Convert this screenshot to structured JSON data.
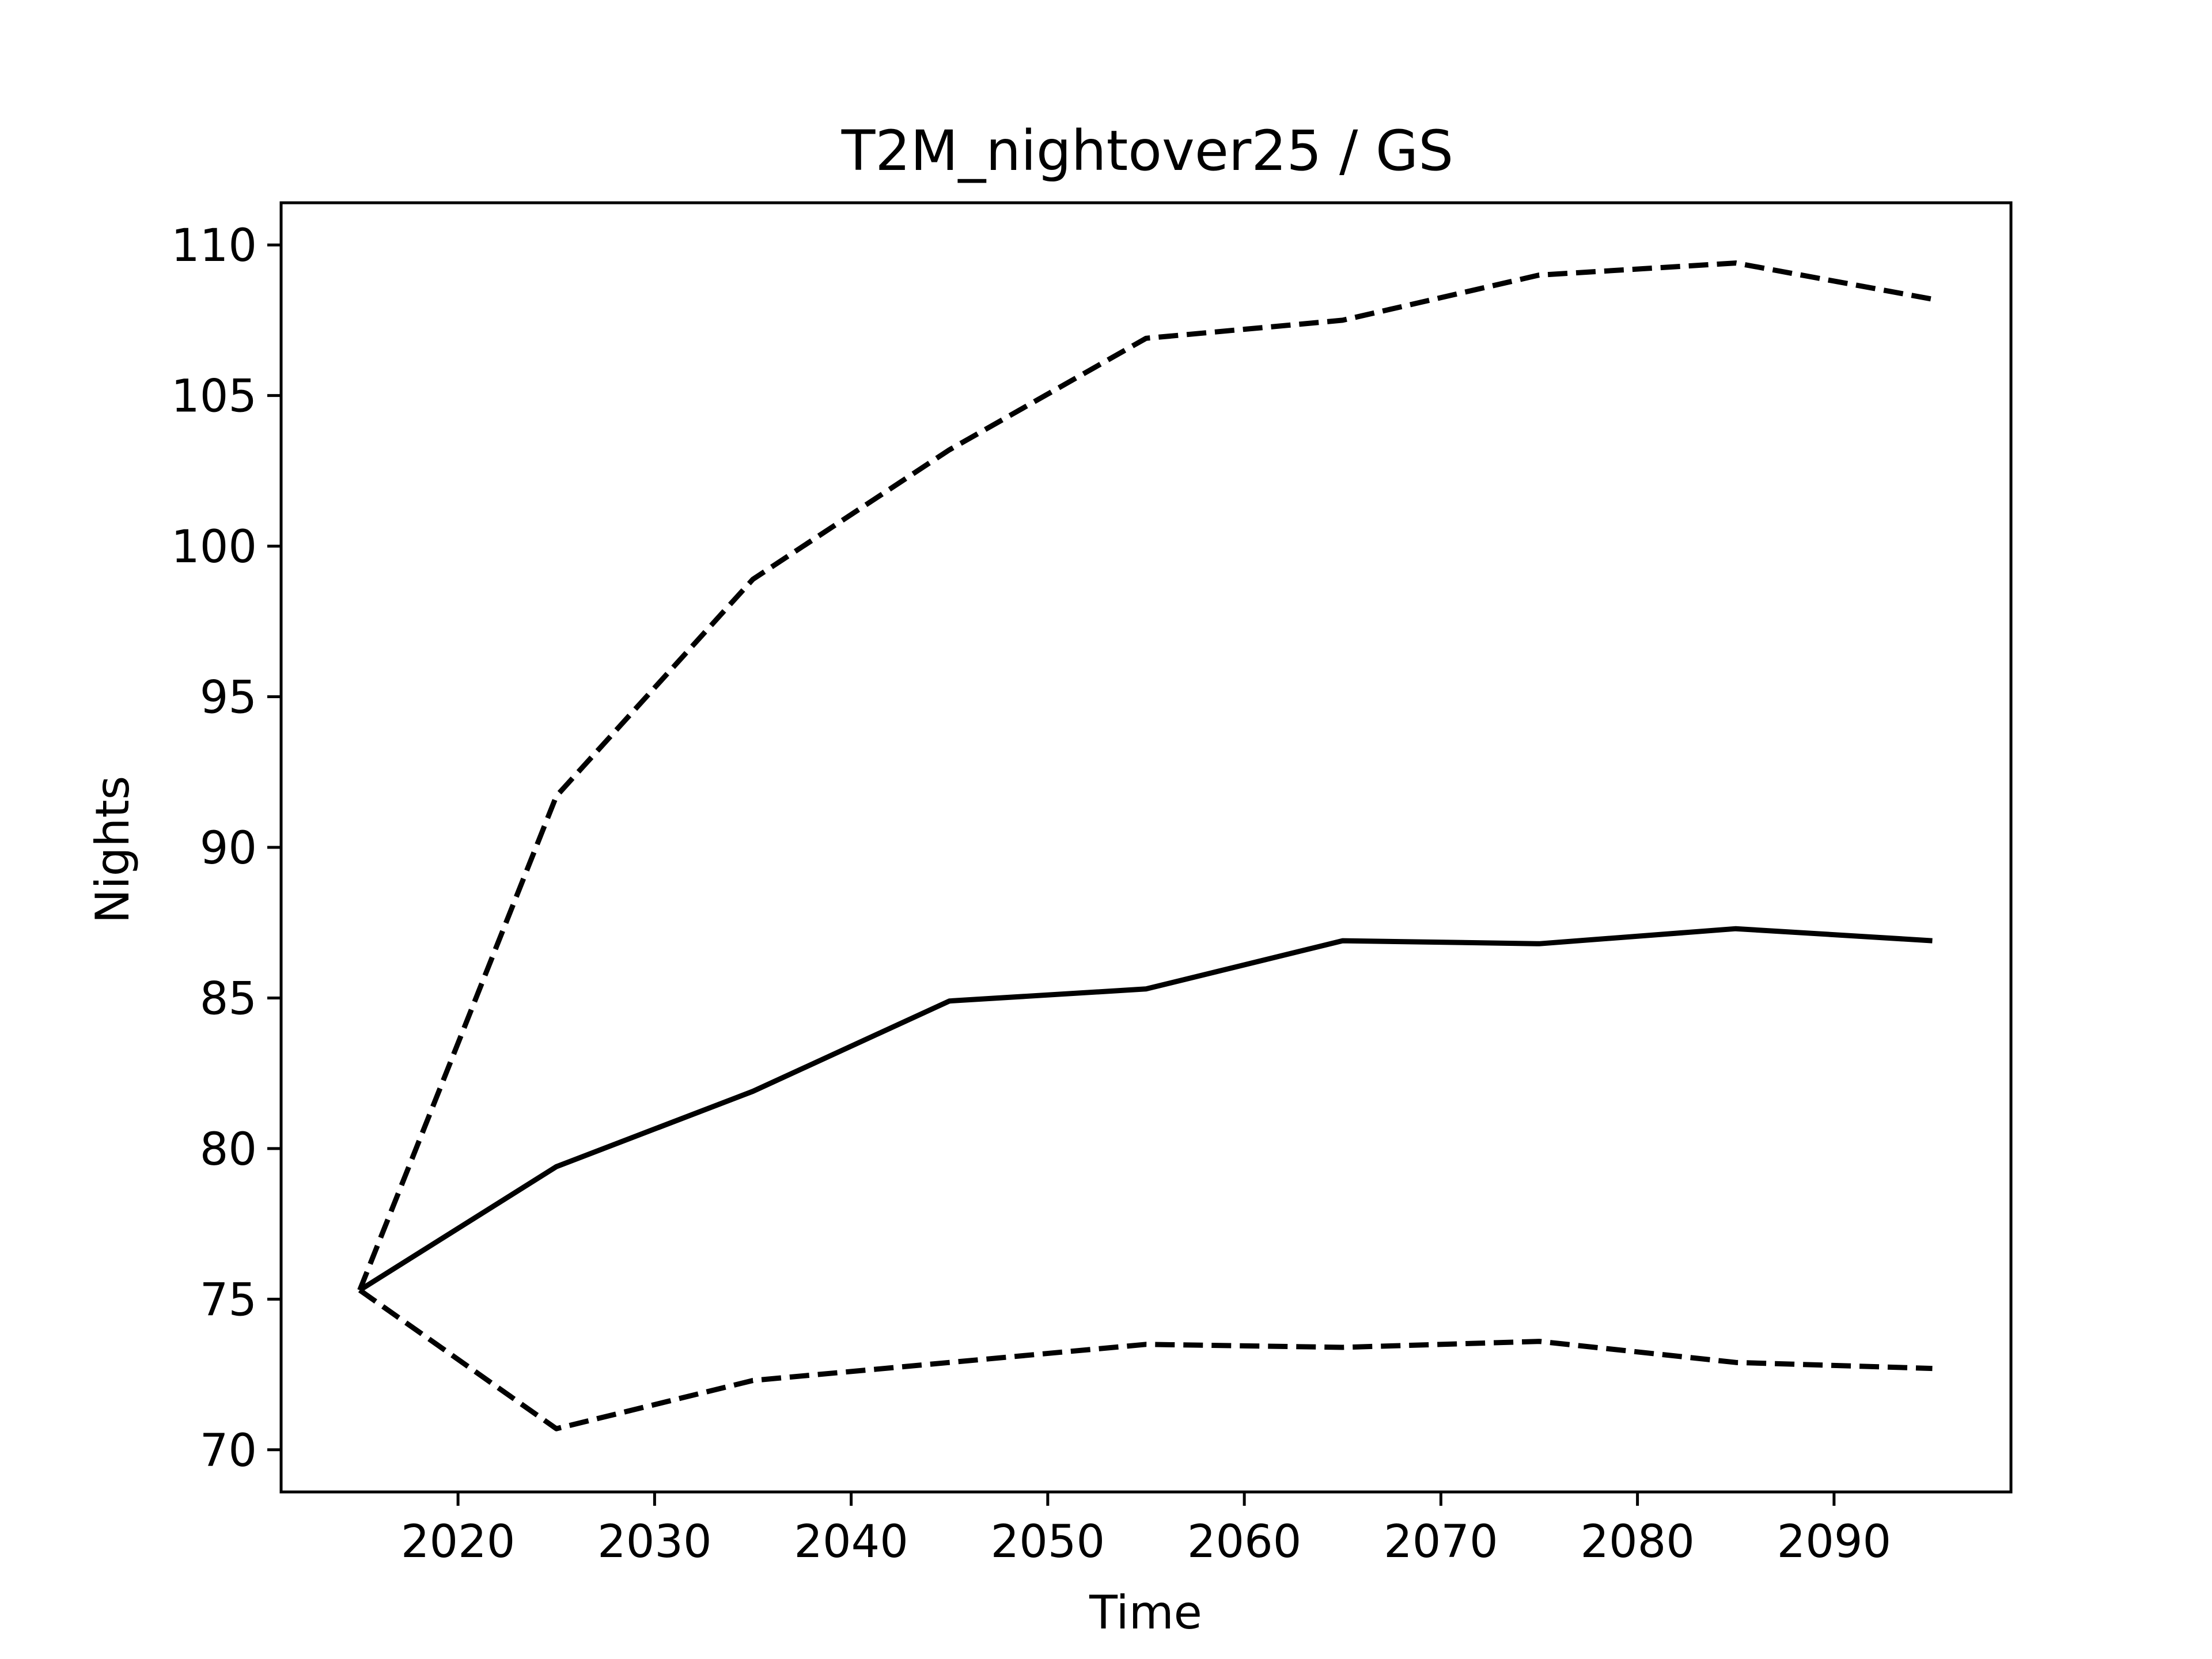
{
  "chart_data": {
    "type": "line",
    "title": "T2M_nightover25 / GS",
    "xlabel": "Time",
    "ylabel": "Nights",
    "xlim": [
      2011,
      2099
    ],
    "ylim": [
      68.6,
      111.4
    ],
    "xticks": [
      2020,
      2030,
      2040,
      2050,
      2060,
      2070,
      2080,
      2090
    ],
    "yticks": [
      70,
      75,
      80,
      85,
      90,
      95,
      100,
      105,
      110
    ],
    "grid": false,
    "x": [
      2015,
      2025,
      2035,
      2045,
      2055,
      2065,
      2075,
      2085,
      2095
    ],
    "series": [
      {
        "style": "solid",
        "color": "#000000",
        "values": [
          75.3,
          79.4,
          81.9,
          84.9,
          85.3,
          86.9,
          86.8,
          87.3,
          86.9
        ]
      },
      {
        "style": "dashed",
        "color": "#000000",
        "values": [
          75.3,
          91.7,
          98.9,
          103.2,
          106.9,
          107.5,
          109.0,
          109.4,
          108.2
        ]
      },
      {
        "style": "dashed",
        "color": "#000000",
        "values": [
          75.3,
          70.7,
          72.3,
          72.9,
          73.5,
          73.4,
          73.6,
          72.9,
          72.7
        ]
      }
    ]
  }
}
